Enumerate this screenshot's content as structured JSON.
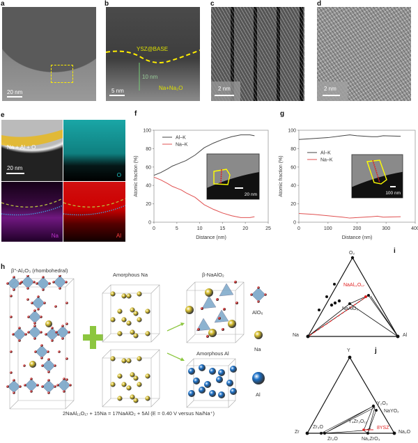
{
  "panels": {
    "a": "a",
    "b": "b",
    "c": "c",
    "d": "d",
    "e": "e",
    "f": "f",
    "g": "g",
    "h": "h",
    "i": "i",
    "j": "j"
  },
  "a": {
    "scale": "20 nm"
  },
  "b": {
    "scale": "5 nm",
    "interface": "YSZ@BASE",
    "thickness": "10 nm",
    "layer": "Na+Na₂O"
  },
  "c": {
    "scale": "2 nm"
  },
  "d": {
    "scale": "2 nm"
  },
  "e": {
    "overlay": "Na + Al + O",
    "scale": "20 nm",
    "maps": [
      "O",
      "Na",
      "Al"
    ],
    "map_colors": {
      "O": "#1ec8c8",
      "Na": "#b020c0",
      "Al": "#e01010"
    }
  },
  "chart_data": [
    {
      "type": "line",
      "panel": "f",
      "xlabel": "Distance (nm)",
      "ylabel": "Atomic fraction (%)",
      "xlim": [
        0,
        25
      ],
      "ylim": [
        0,
        100
      ],
      "xticks": [
        0,
        5,
        10,
        15,
        20,
        25
      ],
      "yticks": [
        0,
        20,
        40,
        60,
        80,
        100
      ],
      "legend": "top-left",
      "inset_scale": "20 nm",
      "series": [
        {
          "name": "Al–K",
          "color": "#444444",
          "x": [
            0,
            1.5,
            3,
            4,
            6,
            7,
            9,
            11,
            13,
            15,
            17,
            19,
            21,
            22
          ],
          "y": [
            51,
            54,
            58,
            61,
            65,
            67,
            73,
            81,
            86,
            90,
            93,
            95,
            95,
            94
          ]
        },
        {
          "name": "Na–K",
          "color": "#e05050",
          "x": [
            0,
            1.5,
            3,
            4,
            6,
            7,
            9,
            11,
            13,
            15,
            17,
            19,
            21,
            22
          ],
          "y": [
            49,
            46,
            42,
            39,
            35,
            32,
            27,
            19,
            14,
            10,
            7,
            5,
            5,
            6
          ]
        }
      ]
    },
    {
      "type": "line",
      "panel": "g",
      "xlabel": "Distance (nm)",
      "ylabel": "Atomic fraction (%)",
      "xlim": [
        0,
        400
      ],
      "ylim": [
        0,
        100
      ],
      "xticks": [
        0,
        100,
        200,
        300,
        400
      ],
      "yticks": [
        0,
        20,
        40,
        60,
        80,
        100
      ],
      "legend": "top-left",
      "inset_scale": "100 nm",
      "series": [
        {
          "name": "Al–K",
          "color": "#444444",
          "x": [
            0,
            50,
            100,
            150,
            175,
            200,
            250,
            270,
            290,
            350
          ],
          "y": [
            90,
            91,
            92,
            94,
            95,
            94,
            93,
            93,
            94,
            93.5
          ]
        },
        {
          "name": "Na–K",
          "color": "#e05050",
          "x": [
            0,
            50,
            100,
            150,
            175,
            200,
            250,
            270,
            290,
            350
          ],
          "y": [
            9.5,
            8.5,
            7,
            5.5,
            4.5,
            5,
            6,
            6.5,
            5.5,
            6
          ]
        }
      ]
    }
  ],
  "h": {
    "structure": "β''-Al₂O₃ (rhombohedral)",
    "amorphous_na": "Amorphous Na",
    "product1": "β-NaAlO₂",
    "product2": "Amorphous Al",
    "legend": [
      "AlO₆",
      "Na",
      "Al"
    ],
    "equation": "2NaAl₁₁O₁₇ + 15Na = 17NaAlO₂ + 5Al (E = 0.40 V versus Na/Na⁺)",
    "colors": {
      "O": "#d01818",
      "Na": "#d8c030",
      "Al": "#1a70c8",
      "polyhedra": "#7aa6c8",
      "plus": "#8cc63f"
    }
  },
  "i": {
    "vertices": [
      "O₂",
      "Na",
      "Al"
    ],
    "phases": [
      "NaAl₁₁O₁₇",
      "NaAlO₂"
    ]
  },
  "j": {
    "vertices": [
      "Y",
      "Zr",
      "Na₂O"
    ],
    "phases": [
      "Y₂O₃",
      "NaYO₂",
      "Y₄Zr₃O₁₂",
      "8YSZ",
      "Zr₃O",
      "Zr₂O",
      "Na₂ZrO₃"
    ]
  }
}
